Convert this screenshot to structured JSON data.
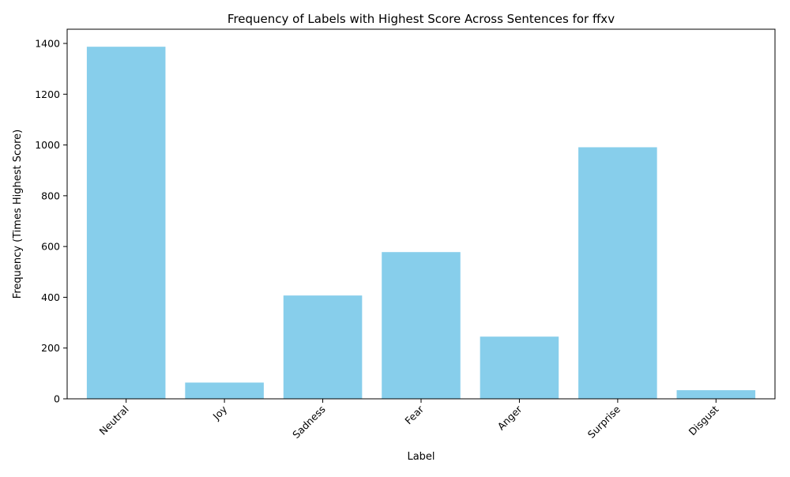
{
  "chart_data": {
    "type": "bar",
    "title": "Frequency of Labels with Highest Score Across Sentences for ffxv",
    "xlabel": "Label",
    "ylabel": "Frequency (Times Highest Score)",
    "categories": [
      "Neutral",
      "Joy",
      "Sadness",
      "Fear",
      "Anger",
      "Surprise",
      "Disgust"
    ],
    "values": [
      1387,
      64,
      407,
      578,
      245,
      991,
      34
    ],
    "ylim": [
      0,
      1456
    ],
    "yticks": [
      0,
      200,
      400,
      600,
      800,
      1000,
      1200,
      1400
    ],
    "bar_color": "#87ceeb",
    "grid": false,
    "legend": "none"
  }
}
